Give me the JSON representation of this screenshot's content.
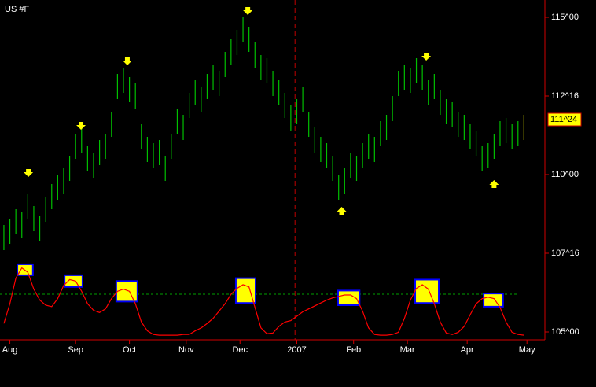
{
  "chart_data": {
    "type": "ohlc",
    "title": "US #F",
    "x": [
      0,
      2,
      4,
      6,
      8,
      10,
      12,
      14,
      16,
      18,
      20,
      22,
      24,
      26,
      28,
      30,
      32,
      34,
      36,
      38,
      40,
      42,
      44,
      46,
      48,
      50,
      52,
      54,
      56,
      58,
      60,
      62,
      64,
      66,
      68,
      70,
      72,
      74,
      76,
      78,
      80,
      82,
      84,
      86,
      88,
      90,
      92,
      94,
      96,
      98,
      100,
      102,
      104,
      106,
      108,
      110,
      112,
      114,
      116,
      118,
      120,
      122,
      124,
      126,
      128,
      130,
      132,
      134,
      136,
      138,
      140,
      142,
      144,
      146,
      148,
      150,
      152,
      154,
      156,
      158,
      160,
      162,
      164,
      166,
      168,
      170,
      172,
      174
    ],
    "high": [
      108.4,
      108.6,
      108.9,
      108.8,
      109.4,
      109.0,
      108.7,
      109.3,
      109.7,
      110.0,
      110.2,
      110.6,
      111.3,
      111.5,
      110.9,
      110.7,
      111.1,
      111.3,
      112.0,
      113.2,
      113.4,
      113.1,
      112.9,
      111.6,
      111.2,
      111.0,
      111.1,
      110.6,
      111.3,
      112.1,
      111.9,
      112.6,
      113.0,
      112.8,
      113.2,
      113.5,
      113.3,
      113.9,
      114.3,
      114.6,
      115.0,
      114.7,
      114.2,
      113.8,
      113.7,
      113.3,
      113.0,
      112.6,
      112.2,
      112.4,
      112.8,
      112.0,
      111.5,
      111.2,
      111.0,
      110.6,
      110.0,
      110.2,
      110.7,
      110.6,
      111.0,
      111.3,
      111.2,
      111.7,
      111.9,
      112.5,
      113.3,
      113.5,
      113.4,
      113.7,
      113.5,
      113.0,
      113.2,
      112.7,
      112.4,
      112.3,
      112.0,
      111.9,
      111.6,
      111.4,
      110.9,
      111.0,
      111.3,
      111.7,
      111.8,
      111.6,
      111.7,
      111.9
    ],
    "low": [
      107.6,
      107.8,
      108.1,
      108.0,
      108.6,
      108.2,
      107.9,
      108.5,
      108.9,
      109.2,
      109.4,
      109.8,
      110.5,
      110.7,
      110.1,
      109.9,
      110.3,
      110.5,
      111.2,
      112.4,
      112.6,
      112.3,
      112.1,
      110.8,
      110.4,
      110.2,
      110.3,
      109.8,
      110.5,
      111.3,
      111.1,
      111.8,
      112.2,
      112.0,
      112.4,
      112.7,
      112.5,
      113.1,
      113.5,
      113.8,
      114.2,
      113.9,
      113.4,
      113.0,
      112.9,
      112.5,
      112.2,
      111.8,
      111.4,
      111.6,
      112.0,
      111.2,
      110.7,
      110.4,
      110.2,
      109.8,
      109.2,
      109.4,
      109.9,
      109.8,
      110.2,
      110.5,
      110.4,
      110.9,
      111.1,
      111.7,
      112.5,
      112.7,
      112.6,
      112.9,
      112.7,
      112.2,
      112.4,
      111.9,
      111.6,
      111.5,
      111.2,
      111.1,
      110.8,
      110.6,
      110.1,
      110.2,
      110.5,
      110.9,
      111.0,
      110.8,
      110.9,
      111.1
    ],
    "color": "#00c000",
    "last_color": "#ffff00",
    "last_price": {
      "value": 111.75,
      "label": "111^24"
    },
    "ylim": [
      104.75,
      115.55
    ],
    "yticks": [
      {
        "value": 115,
        "label": "115^00"
      },
      {
        "value": 112.5,
        "label": "112^16"
      },
      {
        "value": 110,
        "label": "110^00"
      },
      {
        "value": 107.5,
        "label": "107^16"
      },
      {
        "value": 105,
        "label": "105^00"
      }
    ],
    "xlim": [
      -1.3,
      181
    ],
    "xticks": [
      {
        "value": 2,
        "label": "Aug"
      },
      {
        "value": 24,
        "label": "Sep"
      },
      {
        "value": 42,
        "label": "Oct"
      },
      {
        "value": 61,
        "label": "Nov"
      },
      {
        "value": 79,
        "label": "Dec"
      },
      {
        "value": 98,
        "label": "2007"
      },
      {
        "value": 117,
        "label": "Feb"
      },
      {
        "value": 135,
        "label": "Mar"
      },
      {
        "value": 155,
        "label": "Apr"
      },
      {
        "value": 175,
        "label": "May"
      }
    ],
    "year_marker_x": 97.4,
    "signals": [
      {
        "x": 8.2,
        "price": 110.05,
        "direction": "down"
      },
      {
        "x": 25.8,
        "price": 111.55,
        "direction": "down"
      },
      {
        "x": 41.3,
        "price": 113.6,
        "direction": "down"
      },
      {
        "x": 81.6,
        "price": 115.2,
        "direction": "down"
      },
      {
        "x": 141.3,
        "price": 113.75,
        "direction": "down"
      },
      {
        "x": 113,
        "price": 108.85,
        "direction": "up"
      },
      {
        "x": 164,
        "price": 109.7,
        "direction": "up"
      }
    ],
    "indicator": {
      "color": "#ff0000",
      "ylim": [
        0,
        100
      ],
      "level": 58,
      "values": [
        18,
        45,
        80,
        94,
        88,
        65,
        50,
        43,
        41,
        52,
        70,
        78,
        76,
        62,
        45,
        36,
        33,
        38,
        52,
        62,
        65,
        62,
        45,
        20,
        8,
        3,
        2,
        2,
        2,
        2,
        3,
        3,
        8,
        12,
        18,
        25,
        35,
        45,
        58,
        66,
        71,
        68,
        40,
        12,
        4,
        5,
        14,
        20,
        22,
        28,
        34,
        38,
        42,
        46,
        50,
        53,
        55,
        57,
        57,
        52,
        35,
        12,
        3,
        2,
        2,
        3,
        6,
        25,
        50,
        66,
        71,
        65,
        45,
        20,
        5,
        3,
        6,
        14,
        30,
        45,
        52,
        54,
        52,
        40,
        20,
        6,
        3,
        2
      ],
      "zones": [
        {
          "x": [
            4.5,
            9.7
          ],
          "range": [
            84,
            99
          ]
        },
        {
          "x": [
            20.3,
            26.3
          ],
          "range": [
            68,
            84
          ]
        },
        {
          "x": [
            37.6,
            44.7
          ],
          "range": [
            48,
            76
          ]
        },
        {
          "x": [
            77.6,
            84.2
          ],
          "range": [
            46,
            80
          ]
        },
        {
          "x": [
            111.8,
            119
          ],
          "range": [
            43,
            63
          ]
        },
        {
          "x": [
            137.6,
            145.5
          ],
          "range": [
            46,
            78
          ]
        },
        {
          "x": [
            160.5,
            167
          ],
          "range": [
            41,
            59
          ]
        }
      ]
    }
  }
}
